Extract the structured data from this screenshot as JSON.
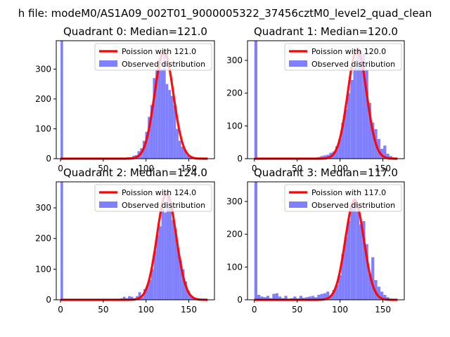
{
  "figure_title": "h file: modeM0/AS1A09_002T01_9000005322_37456cztM0_level2_quad_clean",
  "colors": {
    "poisson_line": "#ff0000",
    "observed_hist": "#8080ff"
  },
  "chart_data": [
    {
      "type": "bar",
      "title": "Quadrant 0: Median=121.0",
      "mean": 121.0,
      "xlim": [
        -5,
        180
      ],
      "ylim": [
        0,
        395
      ],
      "xticks": [
        0,
        50,
        100,
        150
      ],
      "yticks": [
        0,
        100,
        200,
        300
      ],
      "legend": {
        "placement": "top-right",
        "line_label": "Poission with 121.0",
        "hist_label": "Observed distribution"
      },
      "bin_width": 3,
      "observed": {
        "bin_starts": [
          0,
          69,
          72,
          75,
          78,
          81,
          84,
          87,
          90,
          93,
          96,
          99,
          102,
          105,
          108,
          111,
          114,
          117,
          120,
          123,
          126,
          129,
          132,
          135,
          138,
          141,
          144,
          147,
          150,
          153,
          156,
          159,
          162,
          165,
          168
        ],
        "counts": [
          395,
          1,
          2,
          3,
          5,
          5,
          10,
          12,
          25,
          35,
          60,
          90,
          140,
          180,
          270,
          295,
          330,
          300,
          365,
          250,
          230,
          210,
          180,
          100,
          60,
          40,
          30,
          12,
          5,
          3,
          2,
          1,
          1,
          0,
          0
        ]
      }
    },
    {
      "type": "bar",
      "title": "Quadrant 1: Median=120.0",
      "mean": 120.0,
      "xlim": [
        -8,
        175
      ],
      "ylim": [
        0,
        360
      ],
      "xticks": [
        0,
        50,
        100,
        150
      ],
      "yticks": [
        0,
        100,
        200,
        300
      ],
      "legend": {
        "placement": "top-right",
        "line_label": "Poission with 120.0",
        "hist_label": "Observed distribution"
      },
      "bin_width": 3.5,
      "observed": {
        "bin_starts": [
          0,
          70,
          73.5,
          77,
          80.5,
          84,
          87.5,
          91,
          94.5,
          98,
          101.5,
          105,
          108.5,
          112,
          115.5,
          119,
          122.5,
          126,
          129.5,
          133,
          136.5,
          140,
          143.5,
          147,
          150.5,
          154,
          157.5,
          161
        ],
        "counts": [
          360,
          3,
          5,
          8,
          10,
          12,
          18,
          22,
          38,
          60,
          110,
          150,
          200,
          240,
          280,
          340,
          330,
          320,
          270,
          170,
          110,
          90,
          60,
          30,
          40,
          15,
          8,
          3
        ]
      }
    },
    {
      "type": "bar",
      "title": "Quadrant 2: Median=124.0",
      "mean": 124.0,
      "xlim": [
        -5,
        180
      ],
      "ylim": [
        0,
        385
      ],
      "xticks": [
        0,
        50,
        100,
        150
      ],
      "yticks": [
        0,
        100,
        200,
        300
      ],
      "legend": {
        "placement": "top-right",
        "line_label": "Poission with 124.0",
        "hist_label": "Observed distribution"
      },
      "bin_width": 3,
      "observed": {
        "bin_starts": [
          0,
          70,
          73,
          76,
          79,
          82,
          85,
          88,
          91,
          94,
          97,
          100,
          103,
          106,
          109,
          112,
          115,
          118,
          121,
          124,
          127,
          130,
          133,
          136,
          139,
          142,
          145,
          148,
          151,
          154,
          157,
          160,
          163,
          166
        ],
        "counts": [
          385,
          5,
          10,
          5,
          12,
          10,
          5,
          12,
          25,
          8,
          35,
          45,
          65,
          100,
          160,
          210,
          240,
          300,
          285,
          355,
          300,
          260,
          230,
          170,
          130,
          100,
          60,
          30,
          12,
          5,
          3,
          2,
          1,
          0
        ]
      }
    },
    {
      "type": "bar",
      "title": "Quadrant 3: Median=117.0",
      "mean": 117.0,
      "xlim": [
        -8,
        175
      ],
      "ylim": [
        0,
        360
      ],
      "xticks": [
        0,
        50,
        100,
        150
      ],
      "yticks": [
        0,
        100,
        200,
        300
      ],
      "legend": {
        "placement": "top-right",
        "line_label": "Poission with 117.0",
        "hist_label": "Observed distribution"
      },
      "bin_width": 3.5,
      "observed": {
        "bin_starts": [
          0,
          3.5,
          7,
          10.5,
          14,
          17.5,
          21,
          24.5,
          28,
          31.5,
          35,
          38.5,
          42,
          45.5,
          49,
          52.5,
          56,
          59.5,
          63,
          66.5,
          70,
          73.5,
          77,
          80.5,
          84,
          87.5,
          91,
          94.5,
          98,
          101.5,
          105,
          108.5,
          112,
          115.5,
          119,
          122.5,
          126,
          129.5,
          133,
          136.5,
          140,
          143.5,
          147,
          150.5,
          154,
          157.5,
          161
        ],
        "counts": [
          360,
          15,
          10,
          8,
          12,
          5,
          18,
          20,
          10,
          5,
          12,
          3,
          5,
          10,
          4,
          12,
          6,
          8,
          10,
          12,
          8,
          15,
          18,
          20,
          25,
          12,
          30,
          45,
          75,
          140,
          190,
          240,
          290,
          310,
          270,
          230,
          240,
          170,
          80,
          130,
          60,
          40,
          25,
          15,
          8,
          3,
          2
        ]
      }
    }
  ]
}
